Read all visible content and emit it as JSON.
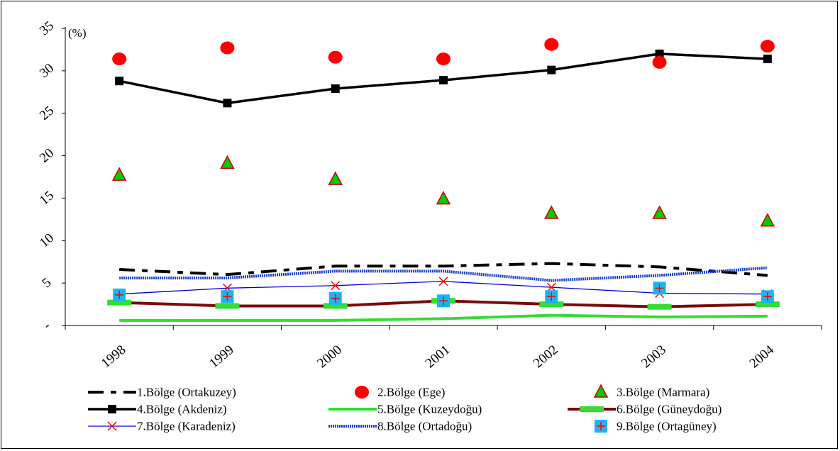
{
  "chart_data": {
    "type": "line",
    "title": "",
    "unit_label": "(%)",
    "xlabel": "",
    "ylabel": "",
    "categories": [
      "1998",
      "1999",
      "2000",
      "2001",
      "2002",
      "2003",
      "2004"
    ],
    "ylim": [
      0,
      35
    ],
    "y_ticks": [
      0,
      5,
      10,
      15,
      20,
      25,
      30,
      35
    ],
    "y_tick_labels": [
      "-",
      "5",
      "10",
      "15",
      "20",
      "25",
      "30",
      "35"
    ],
    "grid": false,
    "legend_position": "bottom",
    "series": [
      {
        "name": "1.Bölge (Ortakuzey)",
        "style": "dashdot",
        "color": "#000000",
        "marker": "none",
        "values": [
          6.6,
          6.0,
          7.0,
          7.0,
          7.3,
          6.9,
          5.9
        ]
      },
      {
        "name": "2.Bölge (Ege)",
        "style": "none",
        "color": "#ff0000",
        "marker": "circle",
        "values": [
          31.4,
          32.7,
          31.6,
          31.4,
          33.1,
          31.0,
          32.9
        ]
      },
      {
        "name": "3.Bölge (Marmara)",
        "style": "none",
        "color": "#00cc00",
        "marker": "triangle",
        "marker_edge": "#cc0000",
        "values": [
          17.7,
          19.1,
          17.2,
          14.9,
          13.2,
          13.2,
          12.3
        ]
      },
      {
        "name": "4.Bölge (Akdeniz)",
        "style": "solid",
        "color": "#000000",
        "marker": "square",
        "values": [
          28.8,
          26.2,
          27.9,
          28.9,
          30.1,
          32.0,
          31.4
        ]
      },
      {
        "name": "5.Bölge (Kuzeydoğu)",
        "style": "solid",
        "color": "#33dd33",
        "marker": "none",
        "values": [
          0.6,
          0.6,
          0.6,
          0.8,
          1.2,
          1.0,
          1.1
        ]
      },
      {
        "name": "6.Bölge (Güneydoğu)",
        "style": "solid",
        "color": "#7a0a0a",
        "marker": "dash",
        "marker_color": "#33dd33",
        "values": [
          2.7,
          2.3,
          2.3,
          2.9,
          2.5,
          2.2,
          2.5
        ]
      },
      {
        "name": "7.Bölge (Karadeniz)",
        "style": "solid",
        "color": "#0000dd",
        "marker": "x",
        "marker_color": "#ff0000",
        "values": [
          3.7,
          4.4,
          4.7,
          5.2,
          4.5,
          3.8,
          3.7
        ]
      },
      {
        "name": "8.Bölge (Ortadoğu)",
        "style": "dotted",
        "color": "#1a3fd0",
        "marker": "none",
        "values": [
          5.6,
          5.6,
          6.4,
          6.4,
          5.3,
          5.9,
          6.8
        ]
      },
      {
        "name": "9.Bölge (Ortagüney)",
        "style": "none",
        "color": "#19b5f0",
        "marker": "plus-square",
        "marker_color": "#ff0000",
        "values": [
          3.6,
          3.4,
          3.2,
          2.9,
          3.4,
          4.4,
          3.4
        ]
      }
    ]
  }
}
